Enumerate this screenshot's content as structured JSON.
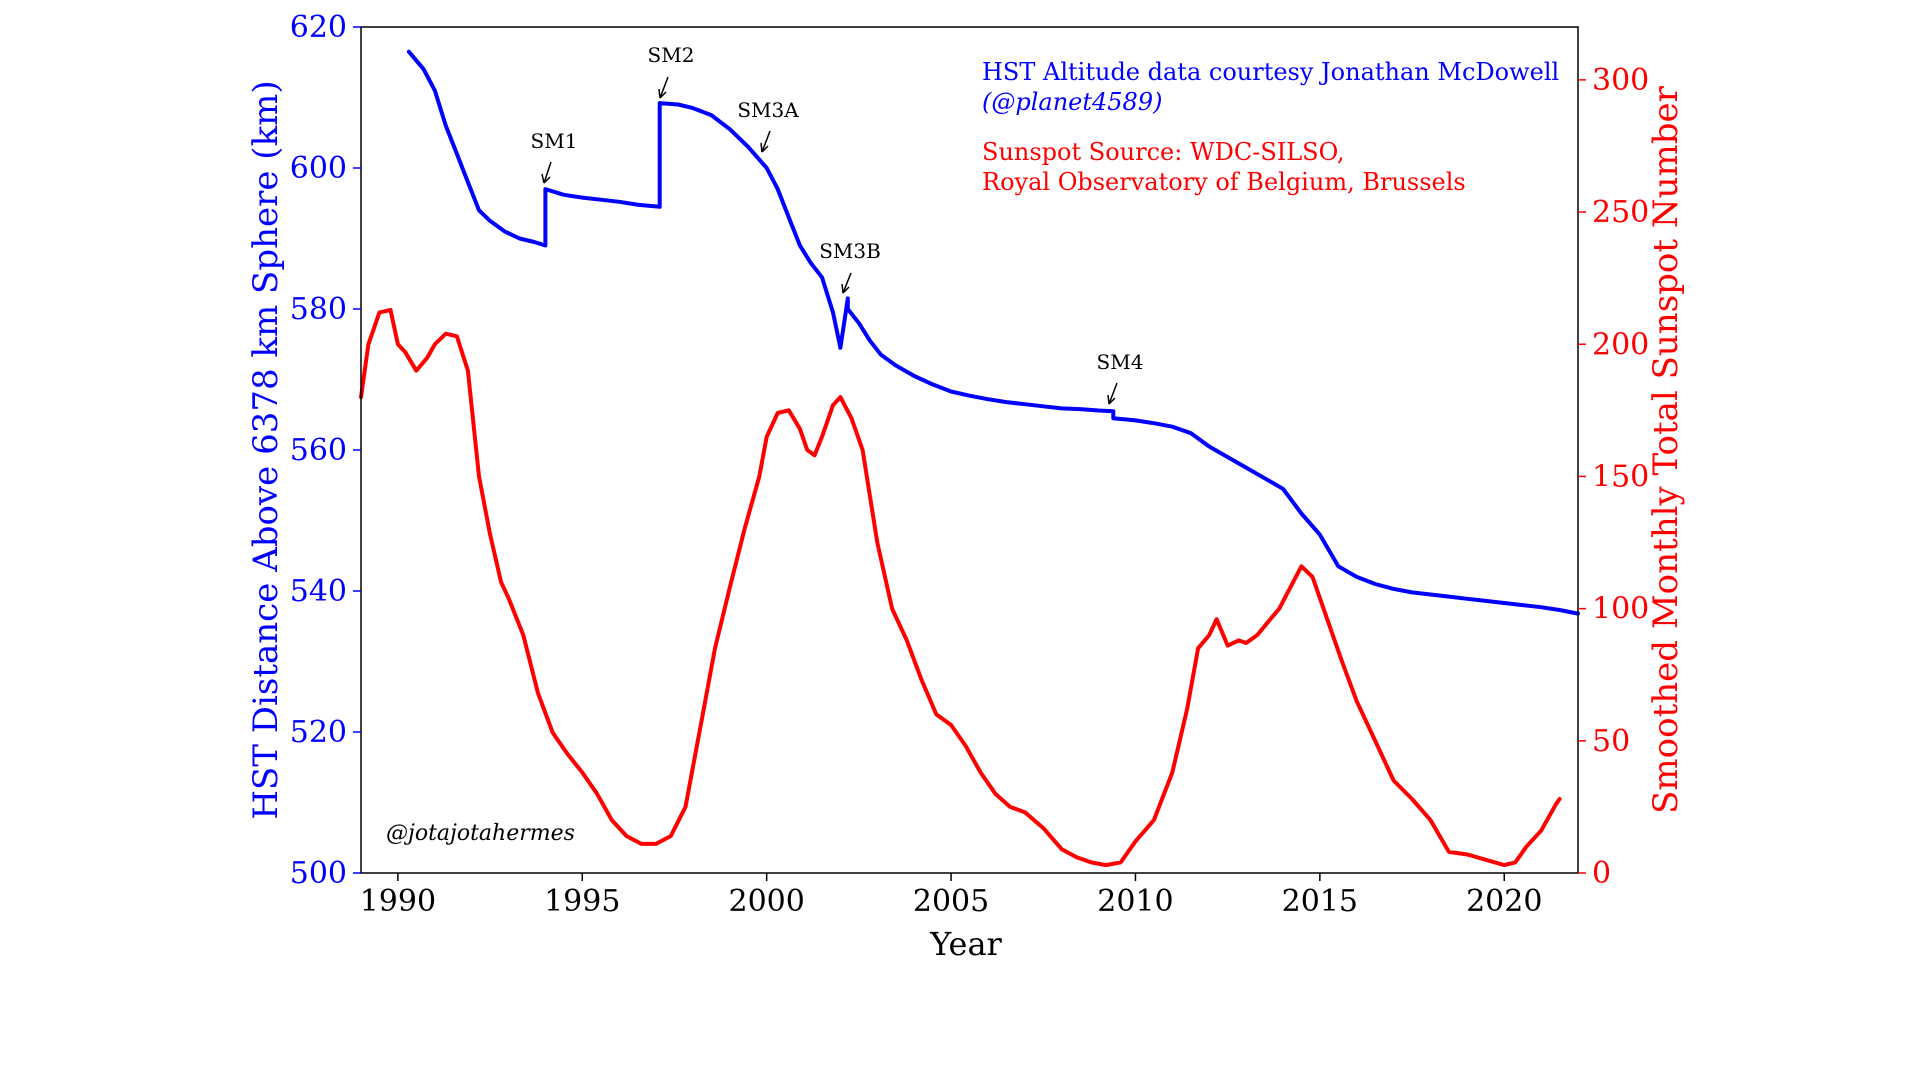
{
  "chart_data": {
    "type": "line",
    "xlabel": "Year",
    "ylabel_left": "HST Distance Above 6378 km Sphere (km)",
    "ylabel_right": "Smoothed Monthly Total Sunspot Number",
    "xlim": [
      1989,
      2022
    ],
    "ylim_left": [
      500,
      620
    ],
    "ylim_right": [
      0,
      320
    ],
    "x_ticks": [
      "1990",
      "1995",
      "2000",
      "2005",
      "2010",
      "2015",
      "2020"
    ],
    "y_left_ticks": [
      "500",
      "520",
      "540",
      "560",
      "580",
      "600",
      "620"
    ],
    "y_right_ticks": [
      "0",
      "50",
      "100",
      "150",
      "200",
      "250",
      "300"
    ],
    "colors": {
      "altitude": "#0000ff",
      "sunspot": "#ff0000",
      "text": "#000000"
    },
    "series": [
      {
        "axis": "left",
        "color": "#0000ff",
        "x": [
          1990.3,
          1990.7,
          1991.0,
          1991.3,
          1991.6,
          1991.9,
          1992.2,
          1992.5,
          1992.9,
          1993.3,
          1993.7,
          1994.0,
          1994.0,
          1994.5,
          1995.0,
          1995.5,
          1996.0,
          1996.5,
          1997.1,
          1997.1,
          1997.6,
          1998.0,
          1998.5,
          1999.0,
          1999.5,
          2000.0,
          2000.3,
          2000.6,
          2000.9,
          2001.2,
          2001.5,
          2001.8,
          2002.0,
          2002.2,
          2002.2,
          2002.5,
          2002.8,
          2003.1,
          2003.5,
          2004.0,
          2004.5,
          2005.0,
          2005.5,
          2006.0,
          2006.5,
          2007.0,
          2007.5,
          2008.0,
          2008.5,
          2009.0,
          2009.4,
          2009.4,
          2010.0,
          2010.5,
          2011.0,
          2011.5,
          2012.0,
          2012.5,
          2013.0,
          2013.5,
          2014.0,
          2014.5,
          2015.0,
          2015.5,
          2016.0,
          2016.5,
          2017.0,
          2017.5,
          2018.0,
          2018.5,
          2019.0,
          2019.5,
          2020.0,
          2020.5,
          2021.0,
          2021.5,
          2022.0
        ],
        "values": [
          616.5,
          614,
          611,
          606,
          602,
          598,
          594,
          592.5,
          591,
          590,
          589.5,
          589,
          597,
          596.2,
          595.8,
          595.5,
          595.2,
          594.8,
          594.5,
          609.2,
          609,
          608.5,
          607.5,
          605.5,
          603,
          600,
          597,
          593,
          589,
          586.5,
          584.5,
          579.5,
          574.5,
          581.5,
          580,
          578,
          575.5,
          573.5,
          572,
          570.5,
          569.3,
          568.3,
          567.7,
          567.2,
          566.8,
          566.5,
          566.2,
          565.9,
          565.8,
          565.6,
          565.5,
          564.5,
          564.2,
          563.8,
          563.3,
          562.4,
          560.5,
          559,
          557.5,
          556,
          554.5,
          551,
          548,
          543.5,
          542,
          541,
          540.3,
          539.8,
          539.5,
          539.2,
          538.9,
          538.6,
          538.3,
          538.0,
          537.7,
          537.3,
          536.8
        ]
      },
      {
        "axis": "right",
        "color": "#ff0000",
        "x": [
          1989.0,
          1989.2,
          1989.5,
          1989.8,
          1990.0,
          1990.2,
          1990.5,
          1990.8,
          1991.0,
          1991.3,
          1991.6,
          1991.9,
          1992.2,
          1992.5,
          1992.8,
          1993.0,
          1993.4,
          1993.8,
          1994.2,
          1994.6,
          1995.0,
          1995.4,
          1995.8,
          1996.2,
          1996.6,
          1997.0,
          1997.4,
          1997.8,
          1998.2,
          1998.6,
          1999.0,
          1999.4,
          1999.8,
          2000.0,
          2000.3,
          2000.6,
          2000.9,
          2001.1,
          2001.3,
          2001.5,
          2001.8,
          2002.0,
          2002.3,
          2002.6,
          2003.0,
          2003.4,
          2003.8,
          2004.2,
          2004.6,
          2005.0,
          2005.4,
          2005.8,
          2006.2,
          2006.6,
          2007.0,
          2007.5,
          2008.0,
          2008.4,
          2008.8,
          2009.2,
          2009.6,
          2010.0,
          2010.5,
          2011.0,
          2011.4,
          2011.7,
          2012.0,
          2012.2,
          2012.5,
          2012.8,
          2013.0,
          2013.3,
          2013.6,
          2013.9,
          2014.2,
          2014.5,
          2014.8,
          2015.2,
          2015.6,
          2016.0,
          2016.5,
          2017.0,
          2017.5,
          2018.0,
          2018.5,
          2019.0,
          2019.5,
          2020.0,
          2020.3,
          2020.6,
          2021.0,
          2021.4,
          2021.5
        ],
        "values": [
          180,
          200,
          212,
          213,
          200,
          197,
          190,
          195,
          200,
          204,
          203,
          190,
          150,
          128,
          110,
          104,
          90,
          68,
          53,
          45,
          38,
          30,
          20,
          14,
          11,
          11,
          14,
          25,
          55,
          85,
          108,
          130,
          150,
          165,
          174,
          175,
          168,
          160,
          158,
          165,
          177,
          180,
          172,
          160,
          125,
          100,
          88,
          73,
          60,
          56,
          48,
          38,
          30,
          25,
          23,
          17,
          9,
          6,
          4,
          3,
          4,
          12,
          20,
          38,
          62,
          85,
          90,
          96,
          86,
          88,
          87,
          90,
          95,
          100,
          108,
          116,
          112,
          96,
          80,
          65,
          50,
          35,
          28,
          20,
          8,
          7,
          5,
          3,
          4,
          10,
          16,
          26,
          28
        ]
      }
    ],
    "annotations": [
      "SM1",
      "SM2",
      "SM3A",
      "SM3B",
      "SM4"
    ],
    "credit_altitude": [
      "HST Altitude data courtesy Jonathan McDowell",
      "(@planet4589)"
    ],
    "credit_sunspot": [
      "Sunspot Source: WDC-SILSO,",
      "Royal Observatory of Belgium, Brussels"
    ],
    "watermark": "@jotajotahermes"
  }
}
